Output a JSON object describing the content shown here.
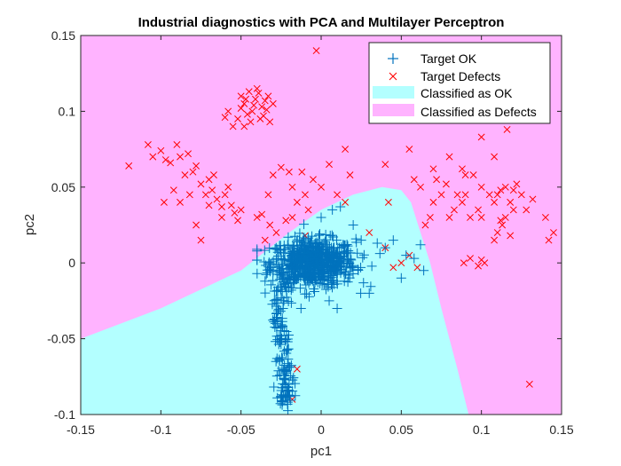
{
  "chart_data": {
    "type": "scatter",
    "title": "Industrial diagnostics with PCA and Multilayer Perceptron",
    "xlabel": "pc1",
    "ylabel": "pc2",
    "xlim": [
      -0.15,
      0.15
    ],
    "ylim": [
      -0.1,
      0.15
    ],
    "xticks": [
      -0.15,
      -0.1,
      -0.05,
      0,
      0.05,
      0.1,
      0.15
    ],
    "xtick_labels": [
      "-0.15",
      "-0.1",
      "-0.05",
      "0",
      "0.05",
      "0.1",
      "0.15"
    ],
    "yticks": [
      -0.1,
      -0.05,
      0,
      0.05,
      0.1,
      0.15
    ],
    "ytick_labels": [
      "-0.1",
      "-0.05",
      "0",
      "0.05",
      "0.1",
      "0.15"
    ],
    "legend_position": "top-right",
    "colors": {
      "ok_marker": "#0072BD",
      "defect_marker": "#FF0000",
      "ok_region": "#B3FFFF",
      "defect_region": "#FFB3FF"
    },
    "regions": [
      {
        "name": "Classified as OK",
        "boundary": [
          [
            -0.15,
            -0.1
          ],
          [
            -0.15,
            -0.05
          ],
          [
            -0.1,
            -0.03
          ],
          [
            -0.05,
            -0.005
          ],
          [
            -0.02,
            0.02
          ],
          [
            0.0,
            0.035
          ],
          [
            0.02,
            0.045
          ],
          [
            0.038,
            0.05
          ],
          [
            0.05,
            0.048
          ],
          [
            0.056,
            0.04
          ],
          [
            0.062,
            0.02
          ],
          [
            0.068,
            0.0
          ],
          [
            0.075,
            -0.03
          ],
          [
            0.085,
            -0.07
          ],
          [
            0.092,
            -0.1
          ]
        ]
      },
      {
        "name": "Classified as Defects",
        "covers": "remaining area"
      }
    ],
    "series": [
      {
        "name": "Target OK",
        "marker": "+",
        "cluster": {
          "center": [
            -0.005,
            0.0
          ],
          "spread": [
            0.022,
            0.012
          ],
          "count": 700
        },
        "tail": [
          [
            -0.022,
            -0.01
          ],
          [
            -0.024,
            -0.02
          ],
          [
            -0.026,
            -0.03
          ],
          [
            -0.027,
            -0.04
          ],
          [
            -0.025,
            -0.05
          ],
          [
            -0.024,
            -0.06
          ],
          [
            -0.023,
            -0.07
          ],
          [
            -0.022,
            -0.075
          ],
          [
            -0.024,
            -0.085
          ],
          [
            -0.022,
            -0.096
          ],
          [
            -0.018,
            -0.08
          ]
        ],
        "points": [
          [
            -0.035,
            -0.012
          ],
          [
            0.045,
            0.015
          ],
          [
            0.053,
            0.005
          ],
          [
            0.058,
            0.003
          ],
          [
            0.064,
            -0.005
          ],
          [
            0.062,
            0.012
          ],
          [
            0.05,
            -0.01
          ],
          [
            0.04,
            0.01
          ],
          [
            0.035,
            0.013
          ],
          [
            0.025,
            0.015
          ],
          [
            -0.03,
            -0.005
          ],
          [
            -0.027,
            0.007
          ],
          [
            0.0,
            0.03
          ],
          [
            0.007,
            0.035
          ],
          [
            0.012,
            0.037
          ],
          [
            0.02,
            0.025
          ],
          [
            0.03,
            -0.02
          ],
          [
            0.01,
            -0.03
          ],
          [
            0.005,
            -0.025
          ]
        ]
      },
      {
        "name": "Target Defects",
        "marker": "x",
        "points": [
          [
            -0.05,
            0.11
          ],
          [
            -0.048,
            0.105
          ],
          [
            -0.045,
            0.113
          ],
          [
            -0.043,
            0.1
          ],
          [
            -0.041,
            0.108
          ],
          [
            -0.039,
            0.112
          ],
          [
            -0.037,
            0.103
          ],
          [
            -0.035,
            0.107
          ],
          [
            -0.046,
            0.098
          ],
          [
            -0.044,
            0.093
          ],
          [
            -0.052,
            0.095
          ],
          [
            -0.058,
            0.1
          ],
          [
            -0.06,
            0.096
          ],
          [
            -0.033,
            0.11
          ],
          [
            -0.038,
            0.095
          ],
          [
            -0.042,
            0.104
          ],
          [
            -0.036,
            0.097
          ],
          [
            -0.034,
            0.101
          ],
          [
            -0.05,
            0.102
          ],
          [
            -0.047,
            0.108
          ],
          [
            -0.04,
            0.115
          ],
          [
            -0.055,
            0.09
          ],
          [
            -0.048,
            0.09
          ],
          [
            -0.032,
            0.093
          ],
          [
            -0.03,
            0.105
          ],
          [
            -0.003,
            0.14
          ],
          [
            -0.12,
            0.064
          ],
          [
            -0.108,
            0.078
          ],
          [
            -0.105,
            0.07
          ],
          [
            -0.1,
            0.074
          ],
          [
            -0.097,
            0.068
          ],
          [
            -0.094,
            0.066
          ],
          [
            -0.09,
            0.078
          ],
          [
            -0.088,
            0.07
          ],
          [
            -0.085,
            0.058
          ],
          [
            -0.083,
            0.072
          ],
          [
            -0.08,
            0.06
          ],
          [
            -0.078,
            0.064
          ],
          [
            -0.075,
            0.052
          ],
          [
            -0.072,
            0.045
          ],
          [
            -0.07,
            0.055
          ],
          [
            -0.068,
            0.048
          ],
          [
            -0.065,
            0.042
          ],
          [
            -0.062,
            0.037
          ],
          [
            -0.06,
            0.045
          ],
          [
            -0.058,
            0.05
          ],
          [
            -0.056,
            0.038
          ],
          [
            -0.054,
            0.033
          ],
          [
            -0.052,
            0.028
          ],
          [
            -0.05,
            0.035
          ],
          [
            -0.075,
            0.015
          ],
          [
            -0.062,
            0.03
          ],
          [
            -0.082,
            0.045
          ],
          [
            -0.088,
            0.04
          ],
          [
            -0.092,
            0.048
          ],
          [
            -0.098,
            0.04
          ],
          [
            -0.078,
            0.025
          ],
          [
            -0.07,
            0.038
          ],
          [
            -0.067,
            0.058
          ],
          [
            -0.04,
            0.03
          ],
          [
            -0.035,
            0.015
          ],
          [
            -0.037,
            0.032
          ],
          [
            -0.033,
            0.045
          ],
          [
            -0.03,
            0.058
          ],
          [
            -0.025,
            0.063
          ],
          [
            -0.02,
            0.06
          ],
          [
            -0.018,
            0.05
          ],
          [
            -0.015,
            0.04
          ],
          [
            -0.012,
            0.06
          ],
          [
            -0.01,
            0.045
          ],
          [
            -0.008,
            0.035
          ],
          [
            -0.005,
            0.055
          ],
          [
            0.0,
            0.05
          ],
          [
            0.005,
            0.065
          ],
          [
            0.01,
            0.045
          ],
          [
            0.015,
            0.04
          ],
          [
            0.018,
            0.058
          ],
          [
            -0.028,
            0.02
          ],
          [
            -0.022,
            0.028
          ],
          [
            -0.018,
            0.03
          ],
          [
            -0.032,
            0.025
          ],
          [
            -0.01,
            0.018
          ],
          [
            0.015,
            0.075
          ],
          [
            0.04,
            0.065
          ],
          [
            0.042,
            0.04
          ],
          [
            0.055,
            0.075
          ],
          [
            0.07,
            0.062
          ],
          [
            0.072,
            0.055
          ],
          [
            0.075,
            0.045
          ],
          [
            0.078,
            0.052
          ],
          [
            0.07,
            0.04
          ],
          [
            0.068,
            0.03
          ],
          [
            0.065,
            0.025
          ],
          [
            0.062,
            0.05
          ],
          [
            0.058,
            0.055
          ],
          [
            0.08,
            0.07
          ],
          [
            0.085,
            0.045
          ],
          [
            0.088,
            0.062
          ],
          [
            0.09,
            0.058
          ],
          [
            0.095,
            0.058
          ],
          [
            0.1,
            0.05
          ],
          [
            0.098,
            0.035
          ],
          [
            0.093,
            0.03
          ],
          [
            0.09,
            0.045
          ],
          [
            0.088,
            0.04
          ],
          [
            0.08,
            0.03
          ],
          [
            0.083,
            0.035
          ],
          [
            0.1,
            0.083
          ],
          [
            0.108,
            0.07
          ],
          [
            0.11,
            0.045
          ],
          [
            0.105,
            0.045
          ],
          [
            0.108,
            0.04
          ],
          [
            0.112,
            0.048
          ],
          [
            0.115,
            0.05
          ],
          [
            0.118,
            0.04
          ],
          [
            0.12,
            0.048
          ],
          [
            0.122,
            0.052
          ],
          [
            0.12,
            0.035
          ],
          [
            0.115,
            0.03
          ],
          [
            0.113,
            0.025
          ],
          [
            0.11,
            0.02
          ],
          [
            0.108,
            0.015
          ],
          [
            0.112,
            0.028
          ],
          [
            0.118,
            0.018
          ],
          [
            0.125,
            0.045
          ],
          [
            0.128,
            0.035
          ],
          [
            0.132,
            0.042
          ],
          [
            0.14,
            0.03
          ],
          [
            0.142,
            0.015
          ],
          [
            0.145,
            0.02
          ],
          [
            0.098,
            -0.002
          ],
          [
            0.1,
            0.002
          ],
          [
            0.102,
            0.0
          ],
          [
            0.093,
            0.003
          ],
          [
            0.089,
            0.0
          ],
          [
            0.06,
            -0.003
          ],
          [
            0.055,
            0.005
          ],
          [
            0.05,
            0.0
          ],
          [
            0.045,
            -0.003
          ],
          [
            0.13,
            -0.08
          ],
          [
            0.1,
            0.03
          ],
          [
            0.116,
            0.088
          ],
          [
            0.04,
            0.01
          ],
          [
            0.03,
            0.02
          ],
          [
            -0.015,
            -0.07
          ],
          [
            -0.018,
            -0.09
          ]
        ]
      }
    ]
  }
}
